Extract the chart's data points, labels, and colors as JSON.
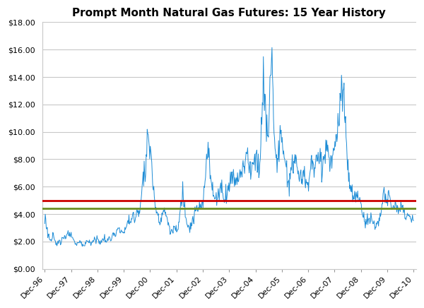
{
  "title": "Prompt Month Natural Gas Futures: 15 Year History",
  "xlabels": [
    "Dec-96",
    "Dec-97",
    "Dec-98",
    "Dec-99",
    "Dec-00",
    "Dec-01",
    "Dec-02",
    "Dec-03",
    "Dec-04",
    "Dec-05",
    "Dec-06",
    "Dec-07",
    "Dec-08",
    "Dec-09",
    "Dec-10"
  ],
  "ylim": [
    0,
    18
  ],
  "yticks": [
    0,
    2,
    4,
    6,
    8,
    10,
    12,
    14,
    16,
    18
  ],
  "red_line": 5.0,
  "green_line": 4.4,
  "line_color": "#1F8DD6",
  "red_color": "#CC0000",
  "green_color": "#6B8E23",
  "bg_color": "#FFFFFF",
  "grid_color": "#C8C8C8"
}
